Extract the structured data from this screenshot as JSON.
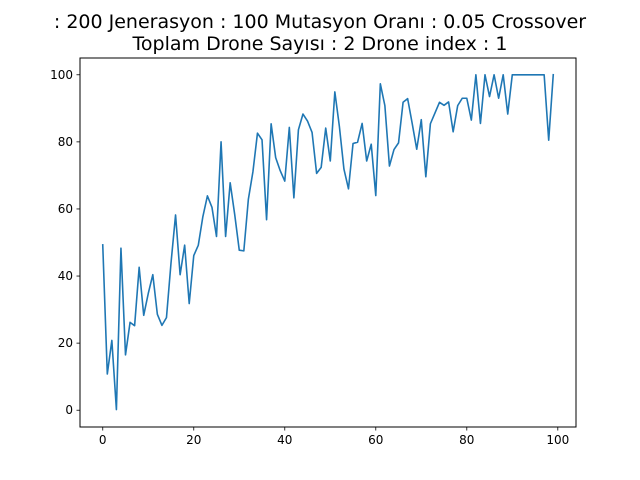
{
  "chart_data": {
    "type": "line",
    "title_lines": [
      ": 200 Jenerasyon : 100 Mutasyon Oranı : 0.05 Crossover",
      "Toplam Drone Sayısı : 2 Drone index : 1"
    ],
    "xlabel": "",
    "ylabel": "",
    "xlim": [
      -5,
      104
    ],
    "ylim": [
      -5,
      105
    ],
    "xticks": [
      0,
      20,
      40,
      60,
      80,
      100
    ],
    "yticks": [
      0,
      20,
      40,
      60,
      80,
      100
    ],
    "grid": false,
    "series": [
      {
        "color": "#1f77b4",
        "x": [
          0,
          1,
          2,
          3,
          4,
          5,
          6,
          7,
          8,
          9,
          10,
          11,
          12,
          13,
          14,
          15,
          16,
          17,
          18,
          19,
          20,
          21,
          22,
          23,
          24,
          25,
          26,
          27,
          28,
          29,
          30,
          31,
          32,
          33,
          34,
          35,
          36,
          37,
          38,
          39,
          40,
          41,
          42,
          43,
          44,
          45,
          46,
          47,
          48,
          49,
          50,
          51,
          52,
          53,
          54,
          55,
          56,
          57,
          58,
          59,
          60,
          61,
          62,
          63,
          64,
          65,
          66,
          67,
          68,
          69,
          70,
          71,
          72,
          73,
          74,
          75,
          76,
          77,
          78,
          79,
          80,
          81,
          82,
          83,
          84,
          85,
          86,
          87,
          88,
          89,
          90,
          91,
          92,
          93,
          94,
          95,
          96,
          97,
          98,
          99
        ],
        "values": [
          49.3,
          10.8,
          20.8,
          0.2,
          48.3,
          16.5,
          26.2,
          25.2,
          42.6,
          28.3,
          34.8,
          40.4,
          28.6,
          25.3,
          27.6,
          43.9,
          58.2,
          40.4,
          49.2,
          31.8,
          46.1,
          49.2,
          57.7,
          63.9,
          60.5,
          51.8,
          80.0,
          51.8,
          67.8,
          58.3,
          47.7,
          47.5,
          62.9,
          71.1,
          82.6,
          80.6,
          56.8,
          85.4,
          75.3,
          71.4,
          68.3,
          84.3,
          63.3,
          83.6,
          88.3,
          86.2,
          82.8,
          70.6,
          72.4,
          84.1,
          74.3,
          94.9,
          84.6,
          71.9,
          66.0,
          79.5,
          79.9,
          85.5,
          74.3,
          79.3,
          64.0,
          97.3,
          90.8,
          72.8,
          77.7,
          79.7,
          91.8,
          92.9,
          85.5,
          77.8,
          86.6,
          69.6,
          85.4,
          88.6,
          91.8,
          90.9,
          91.9,
          83.0,
          90.8,
          93.0,
          93.0,
          86.5,
          100.0,
          85.5,
          100.0,
          93.5,
          100.0,
          93.0,
          100.0,
          88.3,
          100.0,
          100.0,
          100.0,
          100.0,
          100.0,
          100.0,
          100.0,
          100.0,
          80.5,
          100.0
        ]
      }
    ]
  }
}
